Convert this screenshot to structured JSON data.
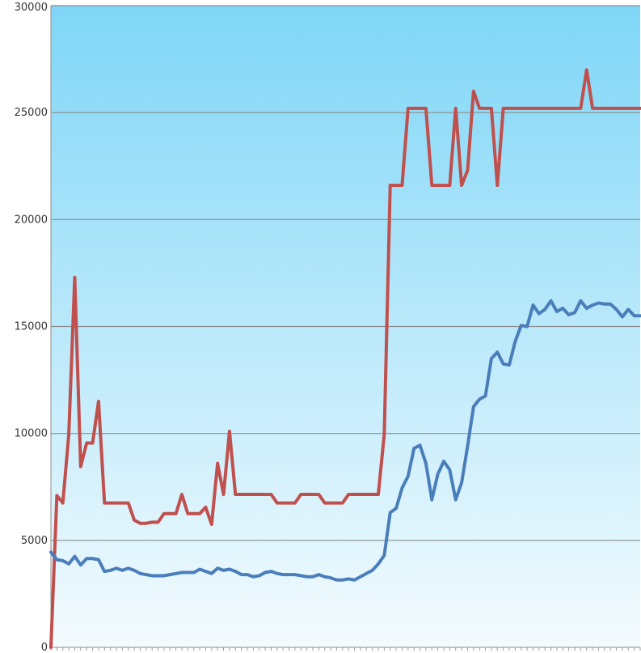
{
  "chart_data": {
    "type": "line",
    "title": "",
    "xlabel": "",
    "ylabel": "",
    "ylim": [
      0,
      30000
    ],
    "y_ticks": [
      "0",
      "5000",
      "10000",
      "15000",
      "20000",
      "25000",
      "30000"
    ],
    "grid": true,
    "legend": "none",
    "background_gradient": [
      "#7fd6f7",
      "#f4fbfe"
    ],
    "x": [
      1,
      2,
      3,
      4,
      5,
      6,
      7,
      8,
      9,
      10,
      11,
      12,
      13,
      14,
      15,
      16,
      17,
      18,
      19,
      20,
      21,
      22,
      23,
      24,
      25,
      26,
      27,
      28,
      29,
      30,
      31,
      32,
      33,
      34,
      35,
      36,
      37,
      38,
      39,
      40,
      41,
      42,
      43,
      44,
      45,
      46,
      47,
      48,
      49,
      50,
      51,
      52,
      53,
      54,
      55,
      56,
      57,
      58,
      59,
      60,
      61,
      62,
      63,
      64,
      65,
      66,
      67,
      68,
      69,
      70,
      71,
      72,
      73,
      74,
      75,
      76,
      77,
      78,
      79,
      80,
      81,
      82,
      83,
      84,
      85,
      86,
      87,
      88,
      89,
      90,
      91,
      92,
      93,
      94,
      95,
      96,
      97,
      98,
      99,
      100
    ],
    "series": [
      {
        "color": "#c0504d",
        "values": [
          0,
          7100,
          6750,
          9950,
          17300,
          8450,
          9550,
          9550,
          11500,
          6750,
          6750,
          6750,
          6750,
          6750,
          5950,
          5800,
          5800,
          5850,
          5850,
          6250,
          6250,
          6250,
          7150,
          6250,
          6250,
          6250,
          6550,
          5750,
          8600,
          7150,
          10100,
          7150,
          7150,
          7150,
          7150,
          7150,
          7150,
          7150,
          6750,
          6750,
          6750,
          6750,
          7150,
          7150,
          7150,
          7150,
          6750,
          6750,
          6750,
          6750,
          7150,
          7150,
          7150,
          7150,
          7150,
          7150,
          9950,
          21600,
          21600,
          21600,
          25200,
          25200,
          25200,
          25200,
          21600,
          21600,
          21600,
          21600,
          25200,
          21600,
          22300,
          26000,
          25200,
          25200,
          25200,
          21600,
          25200,
          25200,
          25200,
          25200,
          25200,
          25200,
          25200,
          25200,
          25200,
          25200,
          25200,
          25200,
          25200,
          25200,
          27000,
          25200,
          25200,
          25200,
          25200,
          25200,
          25200,
          25200,
          25200,
          25200
        ]
      },
      {
        "color": "#4a7ebb",
        "values": [
          4450,
          4100,
          4050,
          3900,
          4250,
          3850,
          4150,
          4150,
          4100,
          3550,
          3600,
          3700,
          3600,
          3700,
          3600,
          3450,
          3400,
          3350,
          3350,
          3350,
          3400,
          3450,
          3500,
          3500,
          3500,
          3650,
          3550,
          3450,
          3700,
          3600,
          3650,
          3550,
          3400,
          3400,
          3300,
          3350,
          3500,
          3550,
          3450,
          3400,
          3400,
          3400,
          3350,
          3300,
          3300,
          3400,
          3300,
          3250,
          3150,
          3150,
          3200,
          3150,
          3300,
          3450,
          3600,
          3900,
          4300,
          6300,
          6500,
          7450,
          8000,
          9300,
          9450,
          8600,
          6900,
          8100,
          8700,
          8300,
          6900,
          7700,
          9400,
          11250,
          11600,
          11750,
          13500,
          13800,
          13250,
          13200,
          14300,
          15050,
          15000,
          16000,
          15600,
          15800,
          16200,
          15700,
          15850,
          15550,
          15650,
          16200,
          15850,
          16000,
          16100,
          16050,
          16050,
          15800,
          15450,
          15800,
          15500,
          15500
        ]
      }
    ]
  }
}
